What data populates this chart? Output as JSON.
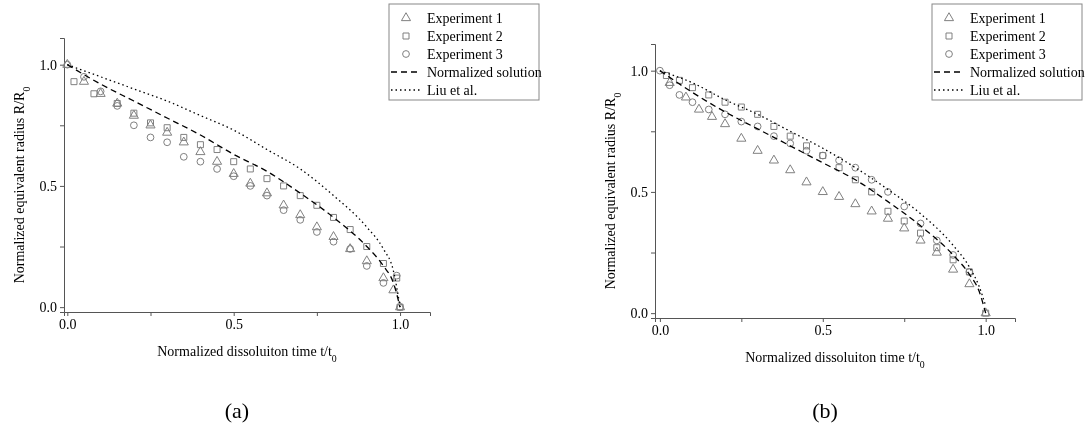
{
  "chart_data": [
    {
      "type": "scatter",
      "xlabel": "Normalized dissoluiton time t/t$_{0}$",
      "ylabel": "Normalized equivalent radius R/R$_{0}$",
      "annotations": [
        "(a)"
      ],
      "legend": "top right",
      "xlim": [
        -0.01,
        1.09
      ],
      "ylim": [
        -0.02,
        1.11
      ],
      "xticks": [
        {
          "value": 0,
          "label": "0.0"
        },
        {
          "value": 0.25,
          "label": null
        },
        {
          "value": 0.5,
          "label": "0.5"
        },
        {
          "value": 0.75,
          "label": null
        },
        {
          "value": 1,
          "label": "1.0"
        }
      ],
      "yticks": [
        {
          "value": 0,
          "label": "0.0"
        },
        {
          "value": 0.25,
          "label": null
        },
        {
          "value": 0.5,
          "label": "0.5"
        },
        {
          "value": 0.75,
          "label": null
        },
        {
          "value": 1,
          "label": "1.0"
        }
      ],
      "series": [
        {
          "name": "Experiment 1",
          "marker": "triangle",
          "color": "#808080",
          "x": [
            0,
            0.05,
            0.1,
            0.15,
            0.2,
            0.25,
            0.3,
            0.35,
            0.4,
            0.45,
            0.5,
            0.55,
            0.6,
            0.65,
            0.7,
            0.75,
            0.8,
            0.85,
            0.9,
            0.95,
            0.98,
            1
          ],
          "values": [
            1,
            0.93,
            0.88,
            0.84,
            0.79,
            0.75,
            0.72,
            0.68,
            0.64,
            0.6,
            0.55,
            0.51,
            0.47,
            0.42,
            0.38,
            0.33,
            0.29,
            0.24,
            0.19,
            0.12,
            0.07,
            0
          ]
        },
        {
          "name": "Experiment 2",
          "marker": "square",
          "color": "#808080",
          "x": [
            0.02,
            0.08,
            0.15,
            0.2,
            0.25,
            0.3,
            0.35,
            0.4,
            0.45,
            0.5,
            0.55,
            0.6,
            0.65,
            0.7,
            0.75,
            0.8,
            0.85,
            0.9,
            0.95,
            0.99,
            1
          ],
          "values": [
            0.93,
            0.88,
            0.84,
            0.8,
            0.76,
            0.74,
            0.7,
            0.67,
            0.65,
            0.6,
            0.57,
            0.53,
            0.5,
            0.46,
            0.42,
            0.37,
            0.32,
            0.25,
            0.18,
            0.12,
            0
          ]
        },
        {
          "name": "Experiment 3",
          "marker": "circle",
          "color": "#808080",
          "x": [
            0,
            0.05,
            0.1,
            0.15,
            0.2,
            0.25,
            0.3,
            0.35,
            0.4,
            0.45,
            0.5,
            0.55,
            0.6,
            0.65,
            0.7,
            0.75,
            0.8,
            0.85,
            0.9,
            0.95,
            0.99,
            1
          ],
          "values": [
            1,
            0.95,
            0.89,
            0.83,
            0.75,
            0.7,
            0.68,
            0.62,
            0.6,
            0.57,
            0.54,
            0.5,
            0.46,
            0.4,
            0.36,
            0.31,
            0.27,
            0.24,
            0.17,
            0.1,
            0.13,
            0
          ]
        },
        {
          "name": "Normalized solution",
          "type": "line",
          "line_style": "dashed",
          "color": "#000000",
          "x": [
            0,
            0.1,
            0.2,
            0.3,
            0.4,
            0.5,
            0.6,
            0.7,
            0.8,
            0.9,
            0.95,
            0.98,
            1
          ],
          "values": [
            1,
            0.92,
            0.85,
            0.78,
            0.71,
            0.63,
            0.56,
            0.47,
            0.37,
            0.25,
            0.17,
            0.1,
            0
          ]
        },
        {
          "name": "Liu et al.",
          "type": "line",
          "line_style": "dotted",
          "color": "#000000",
          "x": [
            0,
            0.1,
            0.2,
            0.3,
            0.4,
            0.5,
            0.6,
            0.7,
            0.8,
            0.9,
            0.95,
            0.98,
            1
          ],
          "values": [
            1,
            0.95,
            0.9,
            0.85,
            0.79,
            0.73,
            0.65,
            0.57,
            0.46,
            0.33,
            0.24,
            0.15,
            0
          ]
        }
      ]
    },
    {
      "type": "scatter",
      "xlabel": "Normalized dissoluiton time t/t$_{0}$",
      "ylabel": "Normalized equivalent radius R/R$_{0}$",
      "annotations": [
        "(b)"
      ],
      "legend": "top right",
      "xlim": [
        -0.015,
        1.09
      ],
      "ylim": [
        -0.02,
        1.11
      ],
      "xticks": [
        {
          "value": 0,
          "label": "0.0"
        },
        {
          "value": 0.25,
          "label": null
        },
        {
          "value": 0.5,
          "label": "0.5"
        },
        {
          "value": 0.75,
          "label": null
        },
        {
          "value": 1,
          "label": "1.0"
        }
      ],
      "yticks": [
        {
          "value": 0,
          "label": "0.0"
        },
        {
          "value": 0.25,
          "label": null
        },
        {
          "value": 0.5,
          "label": "0.5"
        },
        {
          "value": 0.75,
          "label": null
        },
        {
          "value": 1,
          "label": "1.0"
        }
      ],
      "series": [
        {
          "name": "Experiment 1",
          "marker": "triangle",
          "color": "#808080",
          "x": [
            0.03,
            0.08,
            0.12,
            0.16,
            0.2,
            0.25,
            0.3,
            0.35,
            0.4,
            0.45,
            0.5,
            0.55,
            0.6,
            0.65,
            0.7,
            0.75,
            0.8,
            0.85,
            0.9,
            0.95,
            1
          ],
          "values": [
            0.95,
            0.89,
            0.84,
            0.81,
            0.78,
            0.72,
            0.67,
            0.63,
            0.59,
            0.54,
            0.5,
            0.48,
            0.45,
            0.42,
            0.39,
            0.35,
            0.3,
            0.25,
            0.18,
            0.12,
            0
          ]
        },
        {
          "name": "Experiment 2",
          "marker": "square",
          "color": "#808080",
          "x": [
            0.02,
            0.06,
            0.1,
            0.15,
            0.2,
            0.25,
            0.3,
            0.35,
            0.4,
            0.45,
            0.5,
            0.55,
            0.6,
            0.65,
            0.7,
            0.75,
            0.8,
            0.85,
            0.9,
            0.95,
            1
          ],
          "values": [
            0.98,
            0.96,
            0.93,
            0.9,
            0.87,
            0.85,
            0.82,
            0.77,
            0.73,
            0.69,
            0.65,
            0.6,
            0.55,
            0.5,
            0.42,
            0.38,
            0.33,
            0.27,
            0.22,
            0.17,
            0
          ]
        },
        {
          "name": "Experiment 3",
          "marker": "circle",
          "color": "#808080",
          "x": [
            0,
            0.03,
            0.06,
            0.1,
            0.15,
            0.2,
            0.25,
            0.3,
            0.35,
            0.4,
            0.45,
            0.5,
            0.55,
            0.6,
            0.65,
            0.7,
            0.75,
            0.8,
            0.85,
            0.9,
            0.95
          ],
          "values": [
            1,
            0.94,
            0.9,
            0.87,
            0.84,
            0.82,
            0.79,
            0.77,
            0.73,
            0.7,
            0.67,
            0.65,
            0.63,
            0.6,
            0.55,
            0.5,
            0.44,
            0.37,
            0.3,
            0.24,
            0.17
          ]
        },
        {
          "name": "Normalized solution",
          "type": "line",
          "line_style": "dashed",
          "color": "#000000",
          "x": [
            0,
            0.1,
            0.2,
            0.3,
            0.4,
            0.5,
            0.6,
            0.7,
            0.8,
            0.9,
            0.95,
            0.98,
            1
          ],
          "values": [
            1,
            0.91,
            0.83,
            0.76,
            0.69,
            0.62,
            0.55,
            0.46,
            0.36,
            0.24,
            0.16,
            0.09,
            0
          ]
        },
        {
          "name": "Liu et al.",
          "type": "line",
          "line_style": "dotted",
          "color": "#000000",
          "x": [
            0,
            0.1,
            0.2,
            0.3,
            0.4,
            0.5,
            0.6,
            0.7,
            0.8,
            0.9,
            0.95,
            0.98,
            1
          ],
          "values": [
            1,
            0.95,
            0.88,
            0.82,
            0.75,
            0.68,
            0.6,
            0.51,
            0.41,
            0.28,
            0.19,
            0.11,
            0.03
          ]
        }
      ]
    }
  ]
}
